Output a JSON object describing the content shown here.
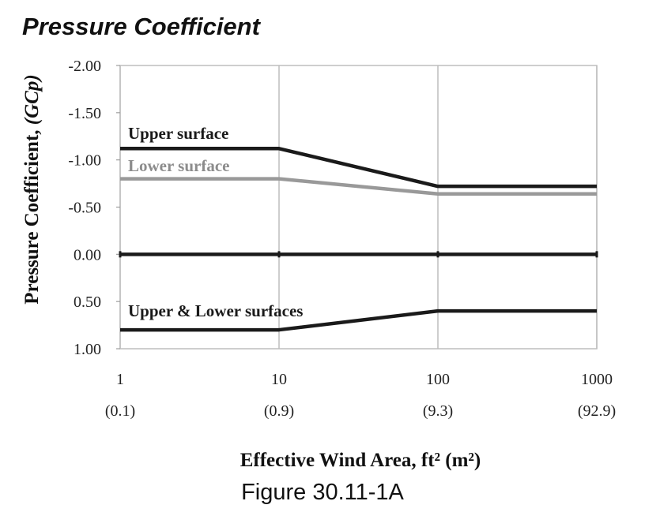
{
  "title": "Pressure Coefficient",
  "figure_label": "Figure 30.11-1A",
  "chart_data": {
    "type": "line",
    "title": "Pressure Coefficient",
    "xlabel": "Effective Wind Area, ft² (m²)",
    "ylabel_prefix": "Pressure Coefficient, ",
    "ylabel_italic": "(GCp)",
    "x_scale": "log",
    "xlim": [
      1,
      1000
    ],
    "ylim": [
      1.0,
      -2.0
    ],
    "y_inverted": true,
    "grid": true,
    "x_ticks": [
      1,
      10,
      100,
      1000
    ],
    "x_tick_labels": [
      "1",
      "10",
      "100",
      "1000"
    ],
    "x_tick_sublabels": [
      "(0.1)",
      "(0.9)",
      "(9.3)",
      "(92.9)"
    ],
    "y_ticks": [
      -2.0,
      -1.5,
      -1.0,
      -0.5,
      0.0,
      0.5,
      1.0
    ],
    "y_tick_labels": [
      "-2.00",
      "-1.50",
      "-1.00",
      "-0.50",
      "0.00",
      "0.50",
      "1.00"
    ],
    "series": [
      {
        "name": "Upper surface",
        "color": "#1a1a1a",
        "x": [
          1,
          10,
          100,
          1000
        ],
        "y": [
          -1.12,
          -1.12,
          -0.72,
          -0.72
        ]
      },
      {
        "name": "Lower surface",
        "color": "#999999",
        "x": [
          1,
          10,
          100,
          1000
        ],
        "y": [
          -0.8,
          -0.8,
          -0.64,
          -0.64
        ]
      },
      {
        "name": "Zero line",
        "color": "#1a1a1a",
        "x": [
          1,
          1000
        ],
        "y": [
          0.0,
          0.0
        ]
      },
      {
        "name": "Upper & Lower surfaces",
        "color": "#1a1a1a",
        "x": [
          1,
          10,
          100,
          1000
        ],
        "y": [
          0.8,
          0.8,
          0.6,
          0.6
        ]
      }
    ]
  }
}
